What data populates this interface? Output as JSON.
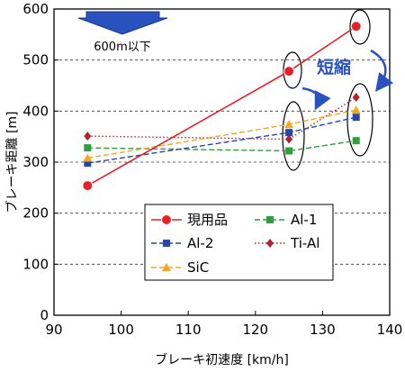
{
  "chart_data": {
    "type": "line",
    "xlabel": "ブレーキ初速度 [km/h]",
    "ylabel": "ブレーキ距離 [m]",
    "xlim": [
      90,
      140
    ],
    "ylim": [
      0,
      600
    ],
    "xticks": [
      90,
      100,
      110,
      120,
      130,
      140
    ],
    "yticks": [
      0,
      100,
      200,
      300,
      400,
      500,
      600
    ],
    "grid": "horizontal-dashed",
    "legend_position": "center-bottom",
    "series": [
      {
        "name": "現用品",
        "color": "#e8202a",
        "dash": "solid",
        "marker": "circle",
        "x": [
          95,
          125,
          135
        ],
        "y": [
          254,
          478,
          566
        ]
      },
      {
        "name": "Al-1",
        "color": "#2e9e3f",
        "dash": "dashed",
        "marker": "square",
        "x": [
          95,
          125,
          135
        ],
        "y": [
          328,
          322,
          342
        ]
      },
      {
        "name": "Al-2",
        "color": "#2646a8",
        "dash": "dashed",
        "marker": "square",
        "x": [
          95,
          125,
          135
        ],
        "y": [
          298,
          358,
          388
        ]
      },
      {
        "name": "Ti-Al",
        "color": "#b5202e",
        "dash": "dotted",
        "marker": "diamond",
        "x": [
          95,
          125,
          135
        ],
        "y": [
          351,
          345,
          427
        ]
      },
      {
        "name": "SiC",
        "color": "#f5a623",
        "dash": "dashed",
        "marker": "triangle",
        "x": [
          95,
          125,
          135
        ],
        "y": [
          308,
          374,
          402
        ]
      }
    ],
    "annotations": [
      {
        "text": "600m以下",
        "kind": "down-arrow-label"
      },
      {
        "text": "短縮",
        "kind": "callout",
        "color": "#2a52be"
      }
    ]
  }
}
